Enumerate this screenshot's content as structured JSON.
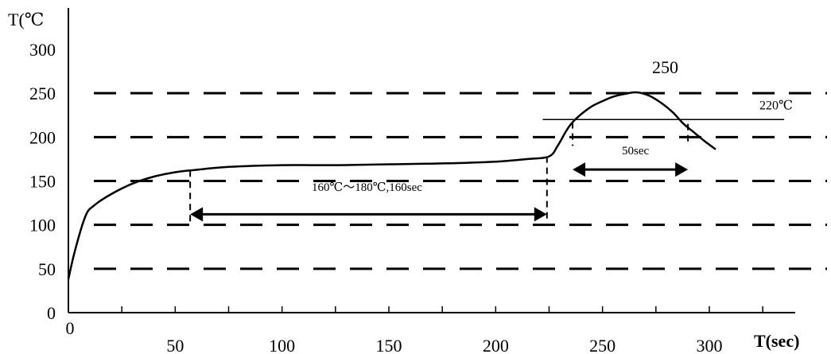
{
  "chart_data": {
    "type": "line",
    "title": "",
    "xlabel": "T(sec)",
    "ylabel": "T(℃",
    "xlim": [
      0,
      350
    ],
    "ylim": [
      0,
      310
    ],
    "grid": false,
    "x_ticks": [
      0,
      50,
      100,
      150,
      200,
      250,
      300
    ],
    "x_tick_labels": [
      "0",
      "50",
      "100",
      "150",
      "200",
      "250",
      "300"
    ],
    "x_minor_ticks": [
      25,
      75,
      125,
      175,
      225,
      275,
      325
    ],
    "y_tick_labels": [
      {
        "value": 0,
        "label": "0"
      },
      {
        "value": 50,
        "label": "50"
      },
      {
        "value": 100,
        "label": "100"
      },
      {
        "value": 150,
        "label": "150"
      },
      {
        "value": 200,
        "label": "200"
      },
      {
        "value": 250,
        "label": "250"
      },
      {
        "value": 300,
        "label": "300"
      }
    ],
    "reference_dashed_lines": [
      50,
      100,
      150,
      200,
      250
    ],
    "series": [
      {
        "x": [
          0,
          3,
          8,
          12,
          20,
          30,
          40,
          50,
          57,
          75,
          100,
          125,
          150,
          175,
          200,
          215,
          225,
          229,
          233,
          236,
          240,
          245,
          250,
          255,
          260,
          266,
          272,
          278,
          283,
          288,
          293,
          298,
          303
        ],
        "y": [
          38,
          70,
          110,
          122,
          135,
          147,
          155,
          160,
          162,
          166,
          168,
          168,
          169,
          170,
          172,
          175,
          178,
          190,
          207,
          217,
          226,
          235,
          241,
          246,
          249,
          251,
          247,
          238,
          228,
          215,
          205,
          195,
          186
        ]
      }
    ],
    "annotations": {
      "peak_label": "250",
      "liquidus_label": "220℃",
      "liquidus_value": 220,
      "liquidus_x_range": [
        222,
        335
      ],
      "preheat_label": "160℃～180℃,160sec",
      "preheat_x_range": [
        57,
        224
      ],
      "preheat_arrow_y": 112,
      "reflow_label": "50sec",
      "reflow_x_range": [
        236,
        290
      ],
      "reflow_arrow_y": 163
    }
  }
}
